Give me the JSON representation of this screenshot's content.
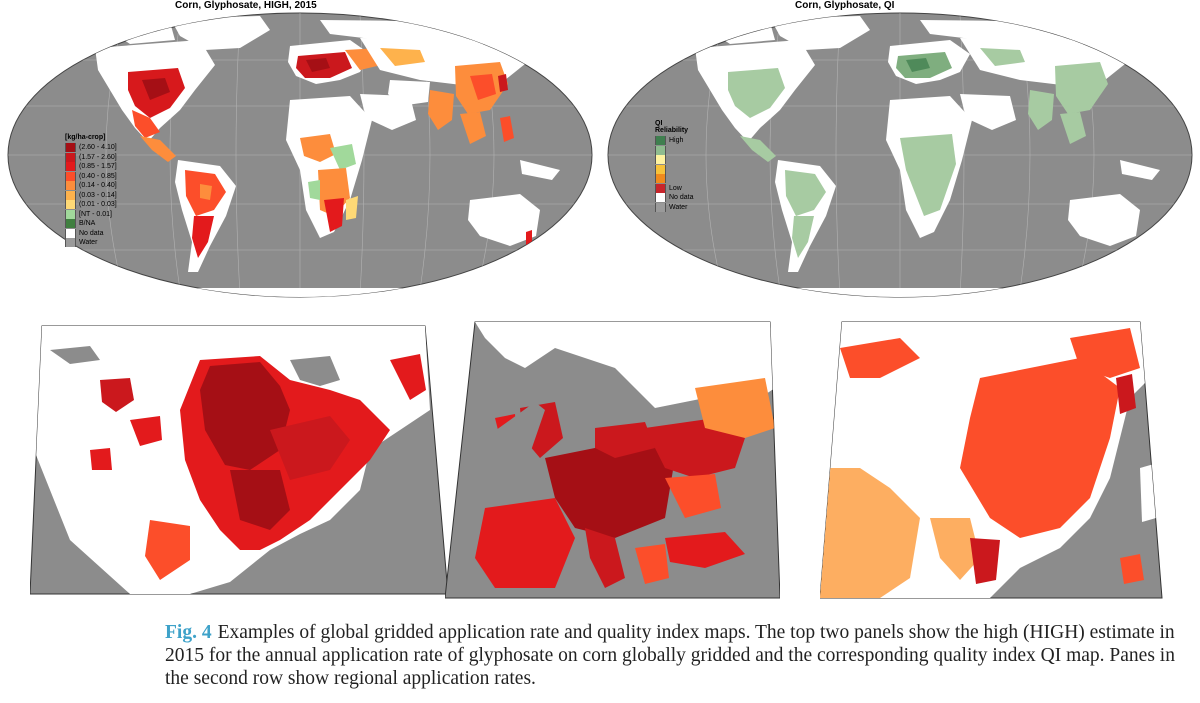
{
  "panel_left_title": "Corn, Glyphosate, HIGH, 2015",
  "panel_right_title": "Corn, Glyphosate, QI",
  "legend_rate": {
    "unit": "[kg/ha-crop]",
    "items": [
      {
        "label": "(2.60 - 4.10]",
        "color": "#a50f15"
      },
      {
        "label": "(1.57 - 2.60]",
        "color": "#cb181d"
      },
      {
        "label": "(0.85 - 1.57]",
        "color": "#e31a1c"
      },
      {
        "label": "(0.40 - 0.85]",
        "color": "#fc4e2a"
      },
      {
        "label": "(0.14 - 0.40]",
        "color": "#fd8d3c"
      },
      {
        "label": "(0.03 - 0.14]",
        "color": "#feb24c"
      },
      {
        "label": "(0.01 - 0.03]",
        "color": "#fed976"
      },
      {
        "label": "[NT - 0.01]",
        "color": "#a1d99b"
      },
      {
        "label": "B/NA",
        "color": "#3f7f3f"
      },
      {
        "label": "No data",
        "color": "#ffffff"
      },
      {
        "label": "Water",
        "color": "#9a9a9a"
      }
    ]
  },
  "legend_qi": {
    "title_line1": "QI",
    "title_line2": "Reliability",
    "items": [
      {
        "label": "High",
        "color": "#3f7f4f"
      },
      {
        "label": "",
        "color": "#8fbc8f"
      },
      {
        "label": "",
        "color": "#fff3a0"
      },
      {
        "label": "",
        "color": "#f7c23a"
      },
      {
        "label": "",
        "color": "#f08a1c"
      },
      {
        "label": "Low",
        "color": "#c8252b"
      },
      {
        "label": "No data",
        "color": "#ffffff"
      },
      {
        "label": "Water",
        "color": "#9a9a9a"
      }
    ]
  },
  "colors": {
    "water": "#8c8c8c",
    "land": "#ffffff",
    "dark_red": "#a50f15",
    "red": "#e31a1c",
    "orange_red": "#fc4e2a",
    "orange": "#fd8d3c",
    "yellow": "#fed976",
    "green_light": "#a1d99b",
    "green_dark": "#3f7f3f",
    "caption_accent": "#3ea2c9"
  },
  "caption": {
    "fig_label": "Fig. 4",
    "text": "Examples of global gridded application rate and quality index maps. The top two panels show the high (HIGH) estimate in 2015 for the annual application rate of glyphosate on corn globally gridded and the corresponding quality index QI map. Panes in the second row show regional application rates."
  }
}
